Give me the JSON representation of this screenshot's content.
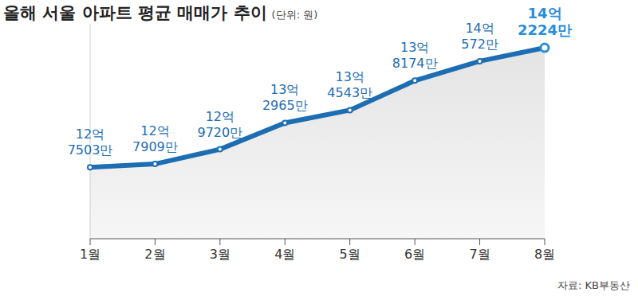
{
  "chart_data": {
    "type": "area",
    "title": "올해 서울 아파트 평균 매매가 추이",
    "subtitle": "(단위: 원)",
    "annotations": [
      "자료: KB부동산"
    ],
    "categories": [
      "1월",
      "2월",
      "3월",
      "4월",
      "5월",
      "6월",
      "7월",
      "8월"
    ],
    "values": [
      1275030000,
      1279090000,
      1297200000,
      1329650000,
      1345430000,
      1381740000,
      1405720000,
      1422240000
    ],
    "value_labels": [
      "12억\n7503만",
      "12억\n7909만",
      "12억\n9720만",
      "13억\n2965만",
      "13억\n4543만",
      "13억\n8174만",
      "14억\n572만",
      "14억\n2224만"
    ],
    "color": "#1d6db3",
    "ylim": [
      1187000000,
      1451700000
    ],
    "tick_labels": "x",
    "data_labels": true,
    "marker": "circle"
  }
}
